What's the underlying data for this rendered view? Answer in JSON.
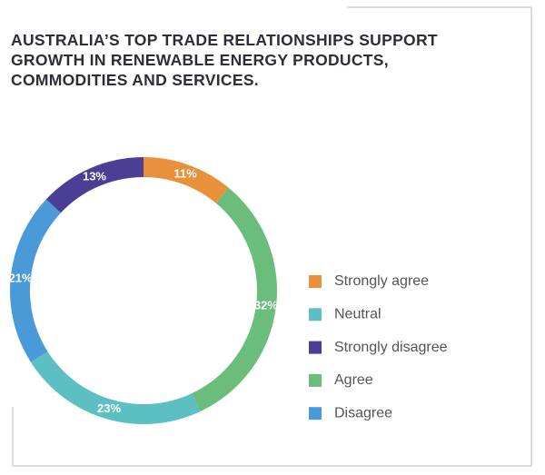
{
  "chart_data": {
    "type": "pie",
    "title": "AUSTRALIA’S TOP TRADE RELATIONSHIPS SUPPORT GROWTH IN RENEWABLE ENERGY PRODUCTS, COMMODITIES AND SERVICES.",
    "categories": [
      "Strongly agree",
      "Agree",
      "Neutral",
      "Disagree",
      "Strongly disagree"
    ],
    "values": [
      11,
      32,
      23,
      21,
      13
    ],
    "value_labels": [
      "11%",
      "32%",
      "23%",
      "21%",
      "13%"
    ],
    "colors": [
      "#e8913a",
      "#6bbd7c",
      "#5cbfc1",
      "#4b9ad8",
      "#4a3f95"
    ],
    "donut": true
  }
}
